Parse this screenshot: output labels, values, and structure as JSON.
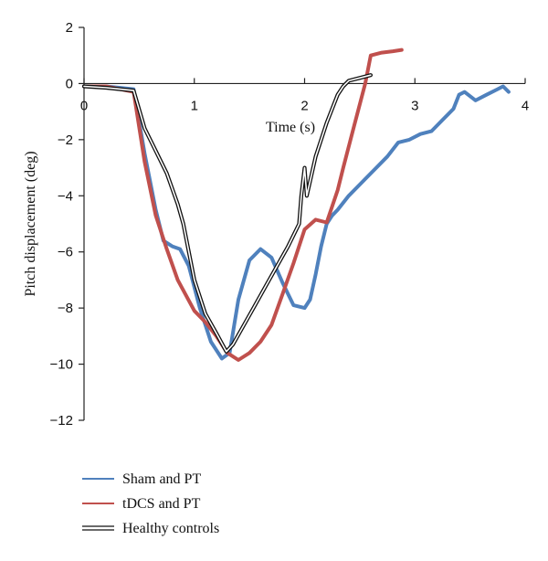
{
  "chart_data": {
    "type": "line",
    "xlabel": "Time (s)",
    "ylabel": "Pitch displacement (deg)",
    "xlim": [
      0,
      4
    ],
    "ylim": [
      -12,
      2
    ],
    "xticks": [
      "0",
      "1",
      "2",
      "3",
      "4"
    ],
    "yticks": [
      "2",
      "0",
      "−2",
      "−4",
      "−6",
      "−8",
      "−10",
      "−12"
    ],
    "grid": false,
    "legend_position": "bottom-left",
    "series": [
      {
        "name": "Sham and PT",
        "color": "#4f81bd",
        "style": "solid",
        "x": [
          0,
          0.2,
          0.45,
          0.55,
          0.65,
          0.72,
          0.8,
          0.87,
          0.95,
          1.05,
          1.15,
          1.25,
          1.32,
          1.4,
          1.5,
          1.6,
          1.7,
          1.8,
          1.9,
          2.0,
          2.05,
          2.1,
          2.15,
          2.2,
          2.25,
          2.3,
          2.4,
          2.5,
          2.55,
          2.65,
          2.75,
          2.85,
          2.95,
          3.05,
          3.15,
          3.25,
          3.35,
          3.4,
          3.45,
          3.55,
          3.65,
          3.75,
          3.8,
          3.85
        ],
        "y": [
          -0.1,
          -0.1,
          -0.2,
          -2.5,
          -4.5,
          -5.6,
          -5.8,
          -5.9,
          -6.5,
          -8.0,
          -9.2,
          -9.8,
          -9.6,
          -7.7,
          -6.3,
          -5.9,
          -6.2,
          -7.1,
          -7.9,
          -8.0,
          -7.7,
          -6.8,
          -5.8,
          -5.0,
          -4.7,
          -4.5,
          -4.0,
          -3.6,
          -3.4,
          -3.0,
          -2.6,
          -2.1,
          -2.0,
          -1.8,
          -1.7,
          -1.3,
          -0.9,
          -0.4,
          -0.3,
          -0.6,
          -0.4,
          -0.2,
          -0.1,
          -0.3
        ]
      },
      {
        "name": "tDCS and PT",
        "color": "#c0504d",
        "style": "solid",
        "x": [
          0,
          0.2,
          0.45,
          0.55,
          0.65,
          0.75,
          0.85,
          1.0,
          1.1,
          1.2,
          1.3,
          1.4,
          1.5,
          1.6,
          1.7,
          1.8,
          1.9,
          2.0,
          2.1,
          2.2,
          2.3,
          2.35,
          2.45,
          2.55,
          2.6,
          2.7,
          2.8,
          2.88
        ],
        "y": [
          -0.1,
          -0.1,
          -0.3,
          -2.8,
          -4.7,
          -5.9,
          -7.0,
          -8.1,
          -8.5,
          -9.0,
          -9.6,
          -9.85,
          -9.6,
          -9.2,
          -8.6,
          -7.5,
          -6.4,
          -5.2,
          -4.85,
          -4.95,
          -3.8,
          -3.0,
          -1.5,
          0.0,
          1.0,
          1.1,
          1.15,
          1.2
        ]
      },
      {
        "name": "Healthy controls",
        "color": "#111111",
        "style": "double",
        "x": [
          0,
          0.2,
          0.45,
          0.55,
          0.65,
          0.75,
          0.85,
          0.9,
          1.0,
          1.1,
          1.2,
          1.29,
          1.35,
          1.45,
          1.55,
          1.65,
          1.75,
          1.85,
          1.95,
          1.97,
          2.0,
          2.02,
          2.1,
          2.2,
          2.3,
          2.35,
          2.4,
          2.5,
          2.6
        ],
        "y": [
          -0.1,
          -0.15,
          -0.25,
          -1.6,
          -2.4,
          -3.2,
          -4.3,
          -5.0,
          -7.0,
          -8.2,
          -8.9,
          -9.55,
          -9.3,
          -8.6,
          -7.9,
          -7.2,
          -6.5,
          -5.8,
          -5.0,
          -4.0,
          -3.0,
          -4.0,
          -2.6,
          -1.4,
          -0.4,
          -0.1,
          0.1,
          0.2,
          0.3
        ]
      }
    ]
  }
}
